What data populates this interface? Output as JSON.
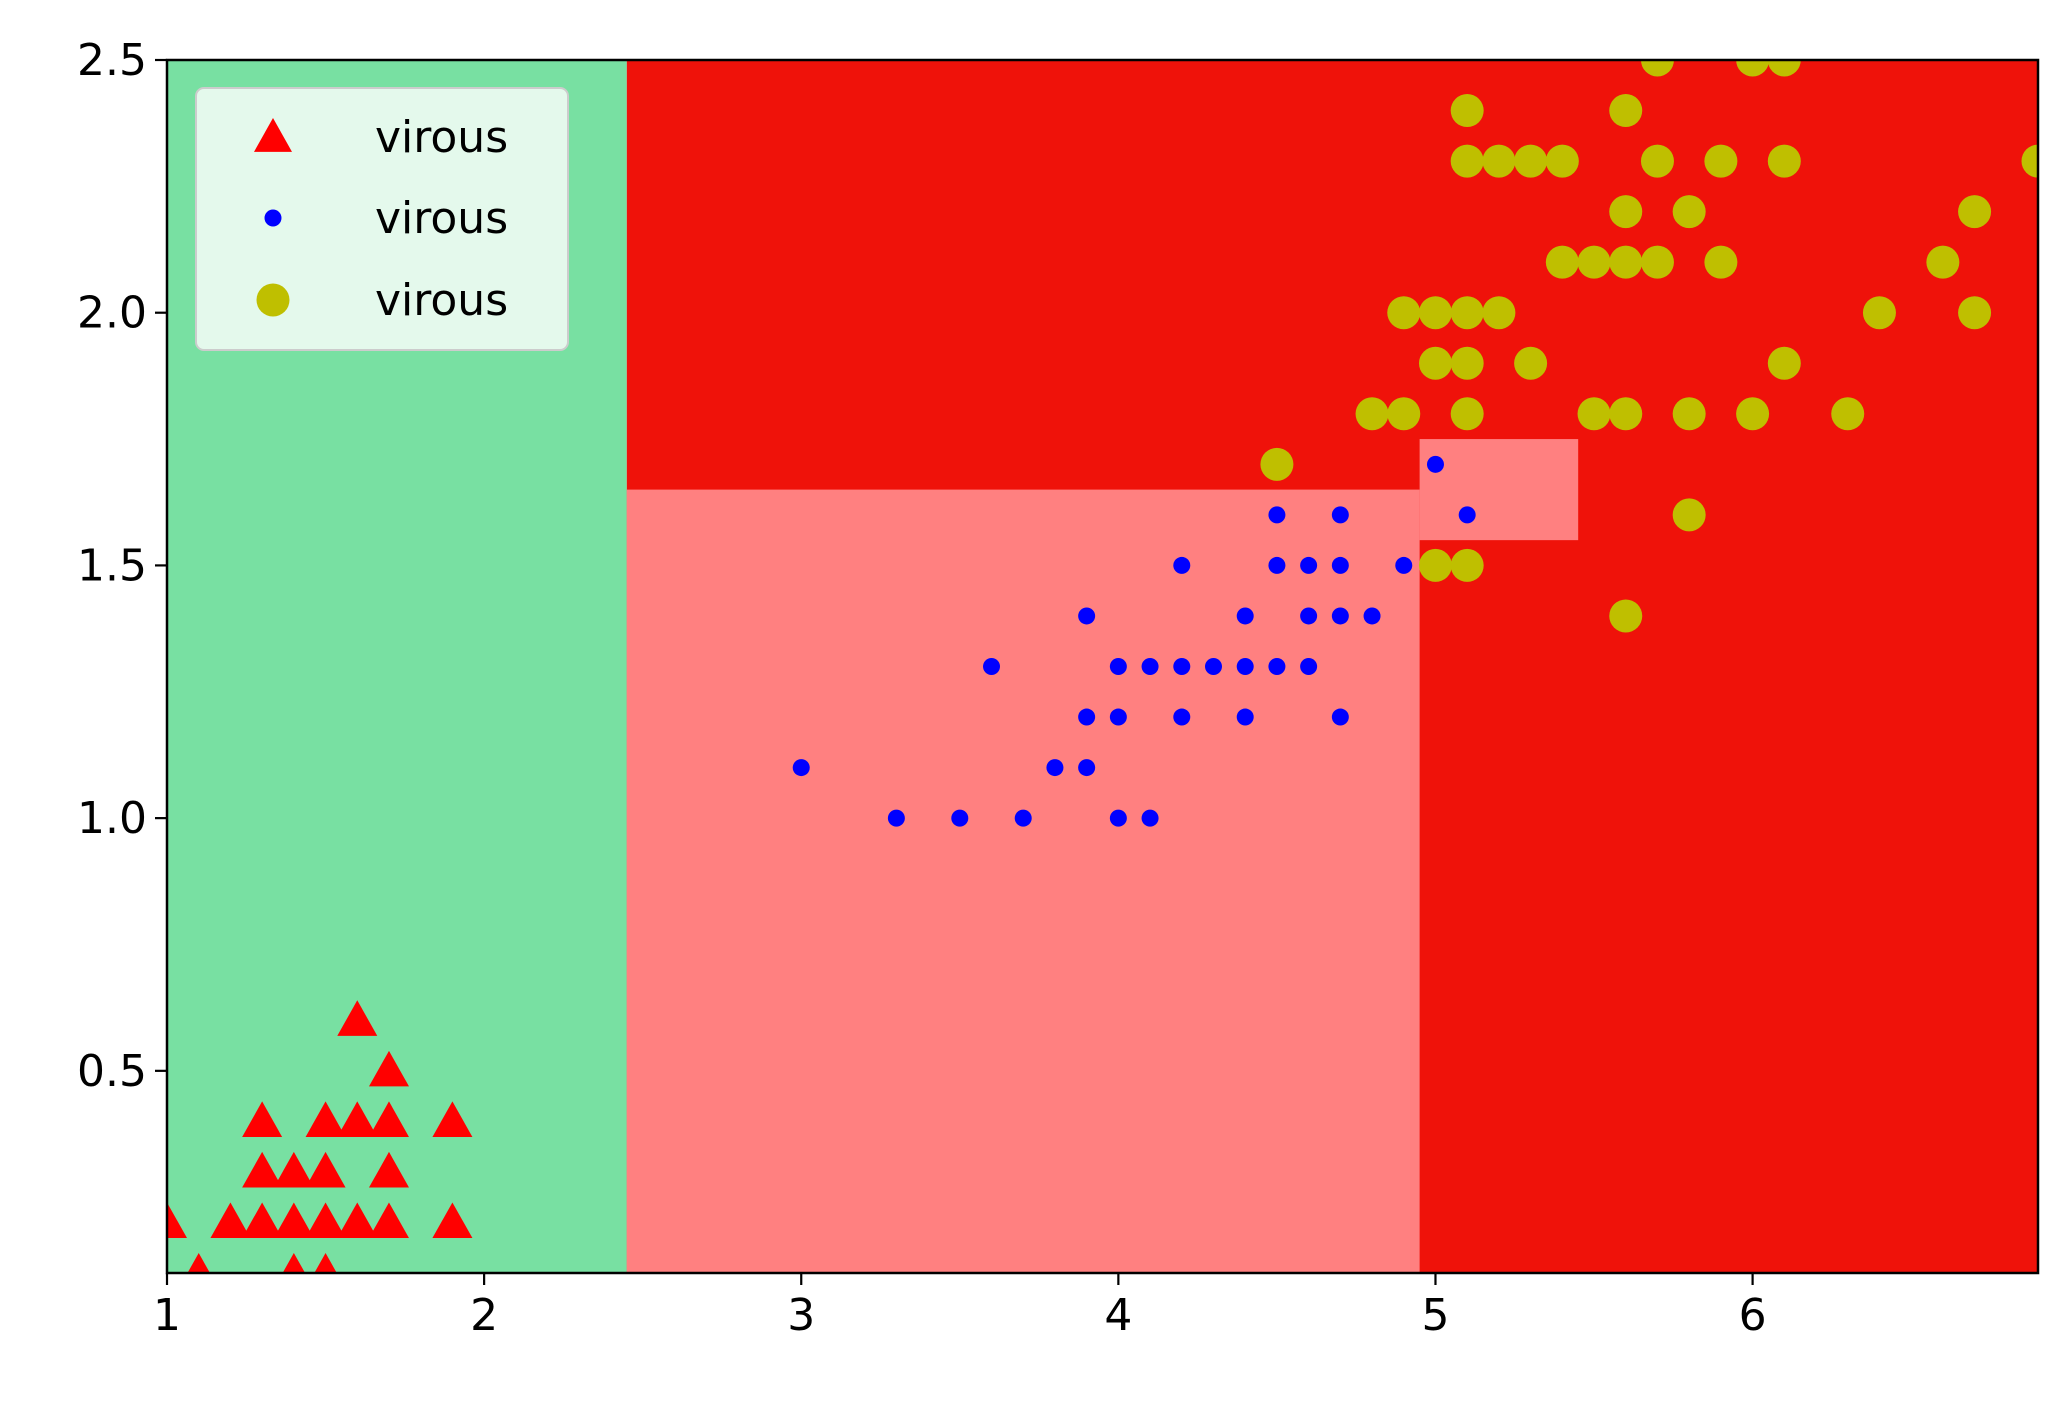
{
  "chart_data": {
    "type": "scatter",
    "title": "",
    "xlabel": "",
    "ylabel": "",
    "xlim": [
      1.0,
      6.9
    ],
    "ylim": [
      0.1,
      2.5
    ],
    "grid": false,
    "legend_placement": "top-left",
    "x_ticks": [
      1,
      2,
      3,
      4,
      5,
      6
    ],
    "x_tick_labels": [
      "1",
      "2",
      "3",
      "4",
      "5",
      "6"
    ],
    "y_ticks": [
      0.5,
      1.0,
      1.5,
      2.0,
      2.5
    ],
    "y_tick_labels": [
      "0.5",
      "1.0",
      "1.5",
      "2.0",
      "2.5"
    ],
    "decision_regions": [
      {
        "x": [
          1.0,
          2.45
        ],
        "y": [
          0.1,
          2.5
        ],
        "color": "#78e0a2"
      },
      {
        "x": [
          2.45,
          6.9
        ],
        "y": [
          0.1,
          2.5
        ],
        "color": "#ef120a"
      },
      {
        "x": [
          2.45,
          4.95
        ],
        "y": [
          0.1,
          1.65
        ],
        "color": "#ff8080"
      },
      {
        "x": [
          4.95,
          5.45
        ],
        "y": [
          1.55,
          1.75
        ],
        "color": "#ff8080"
      }
    ],
    "series": [
      {
        "name": "virous",
        "marker": "triangle",
        "color": "#ff0000",
        "points": [
          [
            1.0,
            0.2
          ],
          [
            1.1,
            0.1
          ],
          [
            1.2,
            0.2
          ],
          [
            1.3,
            0.4
          ],
          [
            1.3,
            0.3
          ],
          [
            1.3,
            0.2
          ],
          [
            1.4,
            0.3
          ],
          [
            1.4,
            0.2
          ],
          [
            1.4,
            0.1
          ],
          [
            1.5,
            0.4
          ],
          [
            1.5,
            0.3
          ],
          [
            1.5,
            0.2
          ],
          [
            1.5,
            0.1
          ],
          [
            1.6,
            0.6
          ],
          [
            1.6,
            0.4
          ],
          [
            1.6,
            0.2
          ],
          [
            1.7,
            0.5
          ],
          [
            1.7,
            0.4
          ],
          [
            1.7,
            0.3
          ],
          [
            1.7,
            0.2
          ],
          [
            1.9,
            0.4
          ],
          [
            1.9,
            0.2
          ]
        ]
      },
      {
        "name": "virous",
        "marker": "small-dot",
        "color": "#0000ff",
        "points": [
          [
            3.0,
            1.1
          ],
          [
            3.3,
            1.0
          ],
          [
            3.5,
            1.0
          ],
          [
            3.6,
            1.3
          ],
          [
            3.7,
            1.0
          ],
          [
            3.8,
            1.1
          ],
          [
            3.9,
            1.4
          ],
          [
            3.9,
            1.2
          ],
          [
            3.9,
            1.1
          ],
          [
            4.0,
            1.3
          ],
          [
            4.0,
            1.2
          ],
          [
            4.0,
            1.0
          ],
          [
            4.1,
            1.3
          ],
          [
            4.1,
            1.0
          ],
          [
            4.2,
            1.5
          ],
          [
            4.2,
            1.3
          ],
          [
            4.2,
            1.2
          ],
          [
            4.3,
            1.3
          ],
          [
            4.4,
            1.4
          ],
          [
            4.4,
            1.3
          ],
          [
            4.4,
            1.2
          ],
          [
            4.5,
            1.6
          ],
          [
            4.5,
            1.5
          ],
          [
            4.5,
            1.3
          ],
          [
            4.6,
            1.5
          ],
          [
            4.6,
            1.4
          ],
          [
            4.6,
            1.3
          ],
          [
            4.7,
            1.6
          ],
          [
            4.7,
            1.5
          ],
          [
            4.7,
            1.4
          ],
          [
            4.7,
            1.2
          ],
          [
            4.8,
            1.4
          ],
          [
            4.9,
            1.5
          ],
          [
            5.0,
            1.7
          ],
          [
            5.1,
            1.6
          ]
        ]
      },
      {
        "name": "virous",
        "marker": "large-dot",
        "color": "#bfbf00",
        "points": [
          [
            4.5,
            1.7
          ],
          [
            4.8,
            1.8
          ],
          [
            4.9,
            2.0
          ],
          [
            4.9,
            1.8
          ],
          [
            5.0,
            2.0
          ],
          [
            5.0,
            1.9
          ],
          [
            5.0,
            1.5
          ],
          [
            5.1,
            2.4
          ],
          [
            5.1,
            2.3
          ],
          [
            5.1,
            2.0
          ],
          [
            5.1,
            1.9
          ],
          [
            5.1,
            1.8
          ],
          [
            5.1,
            1.5
          ],
          [
            5.2,
            2.3
          ],
          [
            5.2,
            2.0
          ],
          [
            5.3,
            2.3
          ],
          [
            5.3,
            1.9
          ],
          [
            5.4,
            2.3
          ],
          [
            5.4,
            2.1
          ],
          [
            5.5,
            2.1
          ],
          [
            5.5,
            1.8
          ],
          [
            5.6,
            2.4
          ],
          [
            5.6,
            2.2
          ],
          [
            5.6,
            2.1
          ],
          [
            5.6,
            1.8
          ],
          [
            5.6,
            1.4
          ],
          [
            5.7,
            2.5
          ],
          [
            5.7,
            2.3
          ],
          [
            5.7,
            2.1
          ],
          [
            5.8,
            2.2
          ],
          [
            5.8,
            1.8
          ],
          [
            5.8,
            1.6
          ],
          [
            5.9,
            2.3
          ],
          [
            5.9,
            2.1
          ],
          [
            6.0,
            2.5
          ],
          [
            6.0,
            1.8
          ],
          [
            6.1,
            2.5
          ],
          [
            6.1,
            2.3
          ],
          [
            6.1,
            1.9
          ],
          [
            6.3,
            1.8
          ],
          [
            6.4,
            2.0
          ],
          [
            6.6,
            2.1
          ],
          [
            6.7,
            2.2
          ],
          [
            6.7,
            2.0
          ],
          [
            6.9,
            2.3
          ]
        ]
      }
    ]
  }
}
